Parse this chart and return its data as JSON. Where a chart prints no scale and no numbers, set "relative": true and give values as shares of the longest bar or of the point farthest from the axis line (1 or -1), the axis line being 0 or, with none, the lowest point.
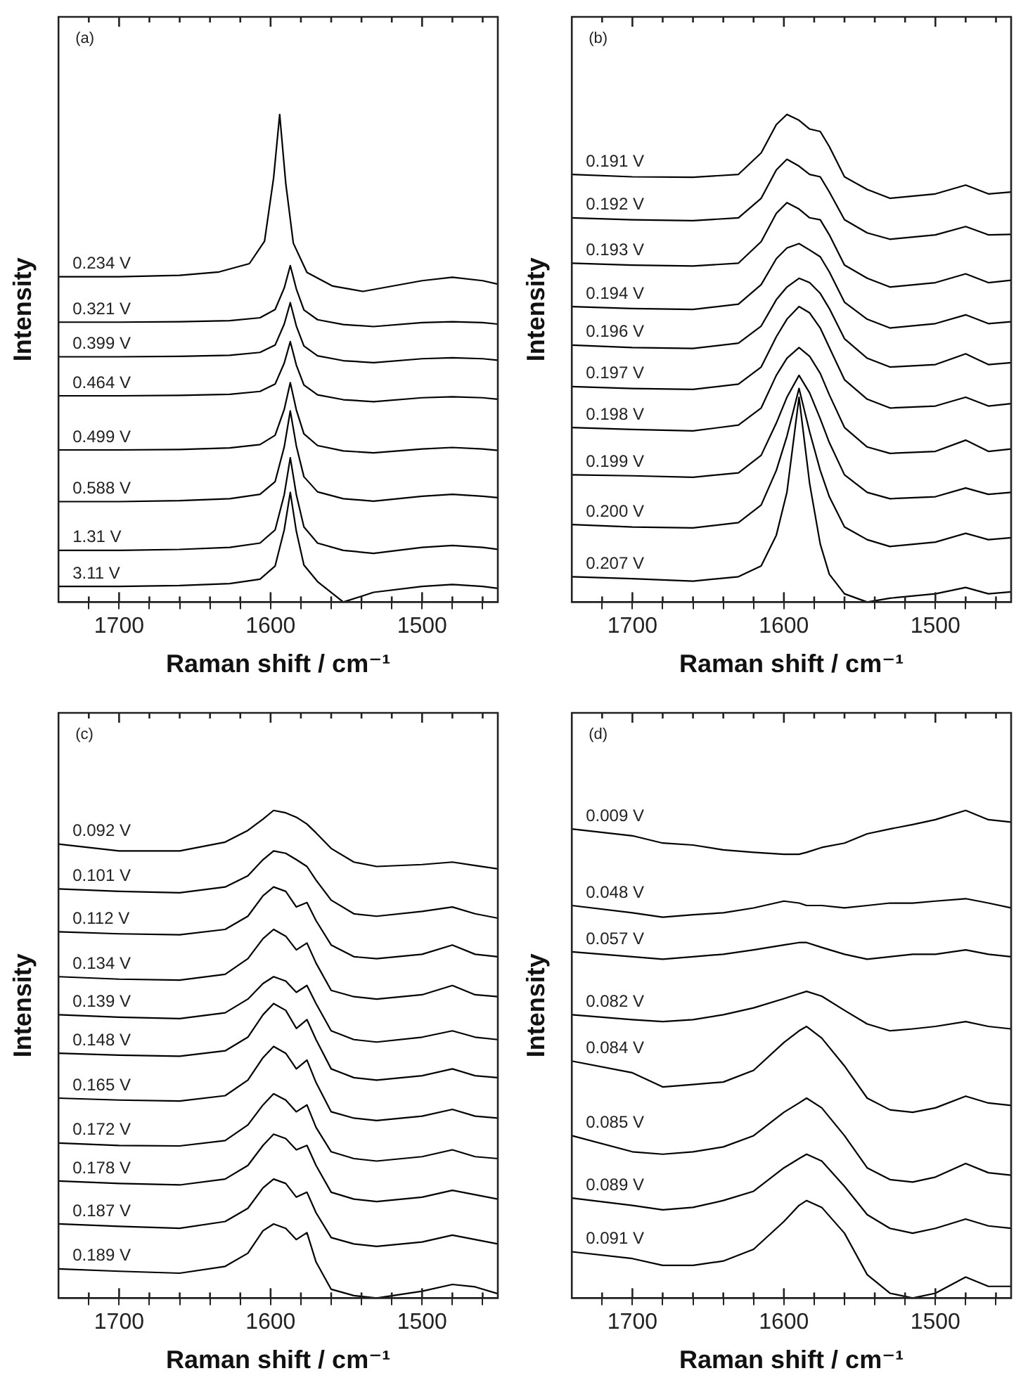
{
  "chart_data": [
    {
      "type": "line",
      "annotations": [
        "(a)"
      ],
      "xlabel": "Raman shift / cm⁻¹",
      "ylabel": "Intensity",
      "relative": true,
      "grid": false,
      "legend": false,
      "marker": "none",
      "line_style": "solid",
      "xlim": [
        1740,
        1450
      ],
      "xticks": [
        {
          "value": 1720,
          "label": null
        },
        1700,
        {
          "value": 1680,
          "label": null
        },
        {
          "value": 1660,
          "label": null
        },
        {
          "value": 1640,
          "label": null
        },
        {
          "value": 1620,
          "label": null
        },
        1600,
        {
          "value": 1580,
          "label": null
        },
        {
          "value": 1560,
          "label": null
        },
        {
          "value": 1540,
          "label": null
        },
        {
          "value": 1520,
          "label": null
        },
        1500,
        {
          "value": 1480,
          "label": null
        },
        {
          "value": 1460,
          "label": null
        }
      ],
      "series": [
        {
          "name": "0.234 V",
          "color": "#000000",
          "x": [
            1740,
            1700,
            1660,
            1634,
            1614,
            1604,
            1598,
            1594,
            1590,
            1585,
            1576,
            1559,
            1539,
            1500,
            1480,
            1460,
            1450
          ],
          "values": [
            0.667,
            0.667,
            0.67,
            0.677,
            0.694,
            0.74,
            0.87,
            1.0,
            0.859,
            0.736,
            0.676,
            0.648,
            0.637,
            0.659,
            0.666,
            0.659,
            0.652
          ]
        },
        {
          "name": "0.321 V",
          "color": "#000000",
          "x": [
            1740,
            1700,
            1660,
            1627,
            1607,
            1597,
            1591,
            1587,
            1583,
            1578,
            1569,
            1552,
            1532,
            1500,
            1480,
            1460,
            1450
          ],
          "values": [
            0.574,
            0.574,
            0.575,
            0.577,
            0.583,
            0.6,
            0.644,
            0.69,
            0.642,
            0.599,
            0.579,
            0.569,
            0.565,
            0.573,
            0.575,
            0.573,
            0.57
          ]
        },
        {
          "name": "0.399 V",
          "color": "#000000",
          "x": [
            1740,
            1700,
            1660,
            1627,
            1607,
            1597,
            1591,
            1587,
            1583,
            1578,
            1569,
            1552,
            1532,
            1500,
            1480,
            1460,
            1450
          ],
          "values": [
            0.503,
            0.503,
            0.504,
            0.506,
            0.512,
            0.527,
            0.57,
            0.614,
            0.566,
            0.525,
            0.505,
            0.495,
            0.491,
            0.499,
            0.501,
            0.499,
            0.496
          ]
        },
        {
          "name": "0.464 V",
          "color": "#000000",
          "x": [
            1740,
            1700,
            1660,
            1627,
            1607,
            1597,
            1591,
            1587,
            1583,
            1578,
            1569,
            1552,
            1532,
            1500,
            1480,
            1460,
            1450
          ],
          "values": [
            0.423,
            0.423,
            0.424,
            0.426,
            0.432,
            0.447,
            0.49,
            0.534,
            0.486,
            0.445,
            0.425,
            0.415,
            0.411,
            0.419,
            0.421,
            0.419,
            0.416
          ]
        },
        {
          "name": "0.499 V",
          "color": "#000000",
          "x": [
            1740,
            1700,
            1660,
            1627,
            1607,
            1597,
            1591,
            1587,
            1583,
            1578,
            1569,
            1552,
            1532,
            1500,
            1480,
            1460,
            1450
          ],
          "values": [
            0.312,
            0.312,
            0.313,
            0.316,
            0.323,
            0.342,
            0.395,
            0.45,
            0.394,
            0.345,
            0.321,
            0.31,
            0.306,
            0.314,
            0.317,
            0.314,
            0.311
          ]
        },
        {
          "name": "0.588 V",
          "color": "#000000",
          "x": [
            1740,
            1700,
            1660,
            1627,
            1607,
            1597,
            1591,
            1587,
            1583,
            1578,
            1569,
            1552,
            1532,
            1500,
            1480,
            1460,
            1450
          ],
          "values": [
            0.206,
            0.206,
            0.208,
            0.212,
            0.221,
            0.247,
            0.318,
            0.392,
            0.32,
            0.257,
            0.226,
            0.212,
            0.207,
            0.217,
            0.221,
            0.217,
            0.214
          ]
        },
        {
          "name": "1.31 V",
          "color": "#000000",
          "x": [
            1740,
            1700,
            1660,
            1627,
            1607,
            1597,
            1591,
            1587,
            1583,
            1578,
            1569,
            1552,
            1532,
            1500,
            1480,
            1460,
            1450
          ],
          "values": [
            0.106,
            0.106,
            0.108,
            0.112,
            0.121,
            0.148,
            0.22,
            0.296,
            0.22,
            0.154,
            0.121,
            0.106,
            0.1,
            0.112,
            0.116,
            0.112,
            0.108
          ]
        },
        {
          "name": "3.11 V",
          "color": "#000000",
          "x": [
            1740,
            1700,
            1660,
            1627,
            1607,
            1597,
            1591,
            1587,
            1583,
            1578,
            1569,
            1552,
            1532,
            1500,
            1480,
            1460,
            1450
          ],
          "values": [
            0.032,
            0.032,
            0.034,
            0.038,
            0.047,
            0.074,
            0.148,
            0.225,
            0.145,
            0.076,
            0.042,
            0.0,
            0.02,
            0.032,
            0.036,
            0.032,
            0.028
          ]
        }
      ]
    },
    {
      "type": "line",
      "annotations": [
        "(b)"
      ],
      "xlabel": "Raman shift / cm⁻¹",
      "ylabel": "Intensity",
      "relative": true,
      "grid": false,
      "legend": false,
      "marker": "none",
      "line_style": "solid",
      "xlim": [
        1740,
        1450
      ],
      "xticks": [
        {
          "value": 1720,
          "label": null
        },
        1700,
        {
          "value": 1680,
          "label": null
        },
        {
          "value": 1660,
          "label": null
        },
        {
          "value": 1640,
          "label": null
        },
        {
          "value": 1620,
          "label": null
        },
        1600,
        {
          "value": 1580,
          "label": null
        },
        {
          "value": 1560,
          "label": null
        },
        {
          "value": 1540,
          "label": null
        },
        {
          "value": 1520,
          "label": null
        },
        1500,
        {
          "value": 1480,
          "label": null
        },
        {
          "value": 1460,
          "label": null
        }
      ],
      "series": [
        {
          "name": "0.191 V",
          "color": "#000000",
          "x": [
            1740,
            1700,
            1660,
            1630,
            1615,
            1605,
            1598,
            1590,
            1583,
            1576,
            1570,
            1560,
            1545,
            1530,
            1500,
            1480,
            1465,
            1450
          ],
          "values": [
            0.877,
            0.872,
            0.871,
            0.877,
            0.921,
            0.979,
            1.0,
            0.988,
            0.97,
            0.965,
            0.934,
            0.872,
            0.846,
            0.828,
            0.837,
            0.855,
            0.837,
            0.841
          ]
        },
        {
          "name": "0.192 V",
          "color": "#000000",
          "x": [
            1740,
            1700,
            1660,
            1630,
            1615,
            1605,
            1598,
            1590,
            1583,
            1576,
            1570,
            1560,
            1545,
            1530,
            1500,
            1480,
            1465,
            1450
          ],
          "values": [
            0.788,
            0.784,
            0.782,
            0.788,
            0.828,
            0.886,
            0.908,
            0.894,
            0.877,
            0.872,
            0.841,
            0.784,
            0.757,
            0.744,
            0.753,
            0.77,
            0.753,
            0.754
          ]
        },
        {
          "name": "0.193 V",
          "color": "#000000",
          "x": [
            1740,
            1700,
            1660,
            1630,
            1615,
            1605,
            1598,
            1590,
            1583,
            1576,
            1570,
            1560,
            1545,
            1530,
            1500,
            1480,
            1465,
            1450
          ],
          "values": [
            0.695,
            0.691,
            0.689,
            0.695,
            0.739,
            0.797,
            0.819,
            0.806,
            0.788,
            0.784,
            0.753,
            0.691,
            0.664,
            0.646,
            0.655,
            0.673,
            0.655,
            0.66
          ]
        },
        {
          "name": "0.194 V",
          "color": "#000000",
          "x": [
            1740,
            1700,
            1660,
            1630,
            1615,
            1605,
            1598,
            1590,
            1583,
            1576,
            1570,
            1560,
            1545,
            1530,
            1500,
            1480,
            1465,
            1450
          ],
          "values": [
            0.606,
            0.602,
            0.6,
            0.611,
            0.651,
            0.704,
            0.726,
            0.735,
            0.722,
            0.708,
            0.677,
            0.615,
            0.58,
            0.562,
            0.571,
            0.589,
            0.571,
            0.575
          ]
        },
        {
          "name": "0.196 V",
          "color": "#000000",
          "x": [
            1740,
            1700,
            1660,
            1630,
            1615,
            1605,
            1598,
            1590,
            1583,
            1576,
            1570,
            1560,
            1545,
            1530,
            1500,
            1480,
            1465,
            1450
          ],
          "values": [
            0.527,
            0.522,
            0.52,
            0.531,
            0.566,
            0.62,
            0.646,
            0.664,
            0.655,
            0.633,
            0.602,
            0.54,
            0.5,
            0.482,
            0.487,
            0.509,
            0.487,
            0.491
          ]
        },
        {
          "name": "0.197 V",
          "color": "#000000",
          "x": [
            1740,
            1700,
            1660,
            1630,
            1615,
            1605,
            1598,
            1590,
            1583,
            1576,
            1570,
            1560,
            1545,
            1530,
            1500,
            1480,
            1465,
            1450
          ],
          "values": [
            0.442,
            0.438,
            0.436,
            0.447,
            0.482,
            0.544,
            0.58,
            0.606,
            0.593,
            0.562,
            0.522,
            0.456,
            0.416,
            0.398,
            0.402,
            0.42,
            0.402,
            0.407
          ]
        },
        {
          "name": "0.198 V",
          "color": "#000000",
          "x": [
            1740,
            1700,
            1660,
            1630,
            1615,
            1605,
            1598,
            1590,
            1583,
            1576,
            1570,
            1560,
            1545,
            1530,
            1500,
            1480,
            1465,
            1450
          ],
          "values": [
            0.358,
            0.354,
            0.351,
            0.363,
            0.398,
            0.465,
            0.5,
            0.522,
            0.504,
            0.469,
            0.425,
            0.358,
            0.318,
            0.305,
            0.309,
            0.332,
            0.309,
            0.314
          ]
        },
        {
          "name": "0.199 V",
          "color": "#000000",
          "x": [
            1740,
            1700,
            1660,
            1630,
            1615,
            1605,
            1598,
            1590,
            1583,
            1576,
            1570,
            1560,
            1545,
            1530,
            1500,
            1480,
            1465,
            1450
          ],
          "values": [
            0.261,
            0.259,
            0.256,
            0.265,
            0.301,
            0.367,
            0.42,
            0.465,
            0.429,
            0.376,
            0.327,
            0.261,
            0.225,
            0.212,
            0.216,
            0.234,
            0.221,
            0.225
          ]
        },
        {
          "name": "0.200 V",
          "color": "#000000",
          "x": [
            1740,
            1700,
            1660,
            1630,
            1615,
            1605,
            1598,
            1590,
            1583,
            1576,
            1570,
            1560,
            1545,
            1530,
            1500,
            1480,
            1465,
            1450
          ],
          "values": [
            0.159,
            0.154,
            0.152,
            0.163,
            0.199,
            0.27,
            0.34,
            0.438,
            0.349,
            0.27,
            0.216,
            0.154,
            0.128,
            0.114,
            0.123,
            0.141,
            0.128,
            0.132
          ]
        },
        {
          "name": "0.207 V",
          "color": "#000000",
          "x": [
            1740,
            1700,
            1660,
            1630,
            1615,
            1605,
            1598,
            1590,
            1583,
            1576,
            1570,
            1560,
            1545,
            1530,
            1500,
            1480,
            1465,
            1450
          ],
          "values": [
            0.052,
            0.048,
            0.043,
            0.052,
            0.074,
            0.137,
            0.225,
            0.42,
            0.243,
            0.119,
            0.057,
            0.017,
            0.0,
            0.008,
            0.017,
            0.03,
            0.017,
            0.021
          ]
        }
      ]
    },
    {
      "type": "line",
      "annotations": [
        "(c)"
      ],
      "xlabel": "Raman shift / cm⁻¹",
      "ylabel": "Intensity",
      "relative": true,
      "grid": false,
      "legend": false,
      "marker": "none",
      "line_style": "solid",
      "xlim": [
        1740,
        1450
      ],
      "xticks": [
        {
          "value": 1720,
          "label": null
        },
        1700,
        {
          "value": 1680,
          "label": null
        },
        {
          "value": 1660,
          "label": null
        },
        {
          "value": 1640,
          "label": null
        },
        {
          "value": 1620,
          "label": null
        },
        1600,
        {
          "value": 1580,
          "label": null
        },
        {
          "value": 1560,
          "label": null
        },
        {
          "value": 1540,
          "label": null
        },
        {
          "value": 1520,
          "label": null
        },
        1500,
        {
          "value": 1480,
          "label": null
        },
        {
          "value": 1460,
          "label": null
        }
      ],
      "series": [
        {
          "name": "0.092 V",
          "color": "#000000",
          "x": [
            1740,
            1700,
            1660,
            1630,
            1615,
            1605,
            1598,
            1590,
            1583,
            1576,
            1570,
            1560,
            1545,
            1530,
            1500,
            1480,
            1465,
            1450
          ],
          "values": [
            0.931,
            0.917,
            0.917,
            0.935,
            0.959,
            0.982,
            1.0,
            0.995,
            0.986,
            0.972,
            0.954,
            0.922,
            0.894,
            0.885,
            0.889,
            0.894,
            0.887,
            0.88
          ]
        },
        {
          "name": "0.101 V",
          "color": "#000000",
          "x": [
            1740,
            1700,
            1660,
            1630,
            1615,
            1605,
            1598,
            1590,
            1583,
            1576,
            1570,
            1560,
            1545,
            1530,
            1500,
            1480,
            1465,
            1450
          ],
          "values": [
            0.839,
            0.834,
            0.831,
            0.843,
            0.866,
            0.899,
            0.917,
            0.912,
            0.899,
            0.885,
            0.857,
            0.816,
            0.788,
            0.783,
            0.793,
            0.802,
            0.788,
            0.779
          ]
        },
        {
          "name": "0.112 V",
          "color": "#000000",
          "x": [
            1740,
            1700,
            1660,
            1630,
            1615,
            1605,
            1598,
            1590,
            1583,
            1576,
            1570,
            1560,
            1545,
            1530,
            1500,
            1480,
            1465,
            1450
          ],
          "values": [
            0.751,
            0.747,
            0.745,
            0.756,
            0.783,
            0.825,
            0.843,
            0.834,
            0.802,
            0.811,
            0.774,
            0.724,
            0.7,
            0.696,
            0.705,
            0.724,
            0.705,
            0.7
          ]
        },
        {
          "name": "0.134 V",
          "color": "#000000",
          "x": [
            1740,
            1700,
            1660,
            1630,
            1615,
            1605,
            1598,
            1590,
            1583,
            1576,
            1570,
            1560,
            1545,
            1530,
            1500,
            1480,
            1465,
            1450
          ],
          "values": [
            0.659,
            0.654,
            0.652,
            0.664,
            0.696,
            0.737,
            0.756,
            0.742,
            0.714,
            0.728,
            0.687,
            0.631,
            0.618,
            0.613,
            0.622,
            0.641,
            0.622,
            0.618
          ]
        },
        {
          "name": "0.139 V",
          "color": "#000000",
          "x": [
            1740,
            1700,
            1660,
            1630,
            1615,
            1605,
            1598,
            1590,
            1583,
            1576,
            1570,
            1560,
            1545,
            1530,
            1500,
            1480,
            1465,
            1450
          ],
          "values": [
            0.581,
            0.576,
            0.573,
            0.585,
            0.613,
            0.645,
            0.659,
            0.65,
            0.627,
            0.641,
            0.604,
            0.548,
            0.53,
            0.525,
            0.535,
            0.548,
            0.535,
            0.53
          ]
        },
        {
          "name": "0.148 V",
          "color": "#000000",
          "x": [
            1740,
            1700,
            1660,
            1630,
            1615,
            1605,
            1598,
            1590,
            1583,
            1576,
            1570,
            1560,
            1545,
            1530,
            1500,
            1480,
            1465,
            1450
          ],
          "values": [
            0.502,
            0.498,
            0.496,
            0.507,
            0.535,
            0.581,
            0.604,
            0.59,
            0.553,
            0.571,
            0.53,
            0.47,
            0.452,
            0.447,
            0.456,
            0.47,
            0.456,
            0.452
          ]
        },
        {
          "name": "0.165 V",
          "color": "#000000",
          "x": [
            1740,
            1700,
            1660,
            1630,
            1615,
            1605,
            1598,
            1590,
            1583,
            1576,
            1570,
            1560,
            1545,
            1530,
            1500,
            1480,
            1465,
            1450
          ],
          "values": [
            0.41,
            0.406,
            0.404,
            0.415,
            0.447,
            0.493,
            0.516,
            0.502,
            0.47,
            0.488,
            0.442,
            0.382,
            0.369,
            0.364,
            0.373,
            0.387,
            0.373,
            0.369
          ]
        },
        {
          "name": "0.172 V",
          "color": "#000000",
          "x": [
            1740,
            1700,
            1660,
            1630,
            1615,
            1605,
            1598,
            1590,
            1583,
            1576,
            1570,
            1560,
            1545,
            1530,
            1500,
            1480,
            1465,
            1450
          ],
          "values": [
            0.318,
            0.313,
            0.312,
            0.323,
            0.355,
            0.396,
            0.419,
            0.406,
            0.382,
            0.396,
            0.35,
            0.3,
            0.286,
            0.281,
            0.29,
            0.304,
            0.29,
            0.286
          ]
        },
        {
          "name": "0.178 V",
          "color": "#000000",
          "x": [
            1740,
            1700,
            1660,
            1630,
            1615,
            1605,
            1598,
            1590,
            1583,
            1576,
            1570,
            1560,
            1545,
            1530,
            1500,
            1480,
            1465,
            1450
          ],
          "values": [
            0.24,
            0.235,
            0.232,
            0.244,
            0.272,
            0.313,
            0.336,
            0.327,
            0.304,
            0.313,
            0.272,
            0.217,
            0.203,
            0.198,
            0.207,
            0.221,
            0.212,
            0.203
          ]
        },
        {
          "name": "0.187 V",
          "color": "#000000",
          "x": [
            1740,
            1700,
            1660,
            1630,
            1615,
            1605,
            1598,
            1590,
            1583,
            1576,
            1570,
            1560,
            1545,
            1530,
            1500,
            1480,
            1465,
            1450
          ],
          "values": [
            0.152,
            0.147,
            0.143,
            0.157,
            0.184,
            0.226,
            0.244,
            0.235,
            0.207,
            0.217,
            0.175,
            0.124,
            0.111,
            0.106,
            0.115,
            0.129,
            0.12,
            0.111
          ]
        },
        {
          "name": "0.189 V",
          "color": "#000000",
          "x": [
            1740,
            1700,
            1660,
            1630,
            1615,
            1605,
            1598,
            1590,
            1583,
            1576,
            1570,
            1560,
            1545,
            1530,
            1500,
            1480,
            1465,
            1450
          ],
          "values": [
            0.06,
            0.055,
            0.051,
            0.065,
            0.092,
            0.138,
            0.152,
            0.143,
            0.12,
            0.134,
            0.074,
            0.018,
            0.005,
            0.0,
            0.014,
            0.028,
            0.023,
            0.009
          ]
        }
      ]
    },
    {
      "type": "line",
      "annotations": [
        "(d)"
      ],
      "xlabel": "Raman shift / cm⁻¹",
      "ylabel": "Intensity",
      "relative": true,
      "grid": false,
      "legend": false,
      "marker": "none",
      "line_style": "solid",
      "xlim": [
        1740,
        1450
      ],
      "xticks": [
        {
          "value": 1720,
          "label": null
        },
        1700,
        {
          "value": 1680,
          "label": null
        },
        {
          "value": 1660,
          "label": null
        },
        {
          "value": 1640,
          "label": null
        },
        {
          "value": 1620,
          "label": null
        },
        1600,
        {
          "value": 1580,
          "label": null
        },
        {
          "value": 1560,
          "label": null
        },
        {
          "value": 1540,
          "label": null
        },
        {
          "value": 1520,
          "label": null
        },
        1500,
        {
          "value": 1480,
          "label": null
        },
        {
          "value": 1460,
          "label": null
        }
      ],
      "series": [
        {
          "name": "0.009 V",
          "color": "#000000",
          "x": [
            1740,
            1700,
            1680,
            1660,
            1640,
            1620,
            1600,
            1590,
            1585,
            1575,
            1560,
            1545,
            1530,
            1515,
            1500,
            1480,
            1465,
            1450
          ],
          "values": [
            0.962,
            0.948,
            0.933,
            0.929,
            0.919,
            0.914,
            0.91,
            0.91,
            0.914,
            0.924,
            0.933,
            0.952,
            0.962,
            0.971,
            0.981,
            1.0,
            0.981,
            0.976
          ]
        },
        {
          "name": "0.048 V",
          "color": "#000000",
          "x": [
            1740,
            1700,
            1680,
            1660,
            1640,
            1620,
            1600,
            1590,
            1585,
            1575,
            1560,
            1545,
            1530,
            1515,
            1500,
            1480,
            1465,
            1450
          ],
          "values": [
            0.805,
            0.79,
            0.781,
            0.786,
            0.79,
            0.8,
            0.814,
            0.81,
            0.805,
            0.805,
            0.8,
            0.805,
            0.81,
            0.81,
            0.814,
            0.819,
            0.81,
            0.8
          ]
        },
        {
          "name": "0.057 V",
          "color": "#000000",
          "x": [
            1740,
            1700,
            1680,
            1660,
            1640,
            1620,
            1600,
            1590,
            1585,
            1575,
            1560,
            1545,
            1530,
            1515,
            1500,
            1480,
            1465,
            1450
          ],
          "values": [
            0.71,
            0.7,
            0.695,
            0.7,
            0.705,
            0.714,
            0.724,
            0.729,
            0.729,
            0.719,
            0.705,
            0.695,
            0.7,
            0.705,
            0.705,
            0.714,
            0.705,
            0.7
          ]
        },
        {
          "name": "0.082 V",
          "color": "#000000",
          "x": [
            1740,
            1700,
            1680,
            1660,
            1640,
            1620,
            1600,
            1590,
            1585,
            1575,
            1560,
            1545,
            1530,
            1515,
            1500,
            1480,
            1465,
            1450
          ],
          "values": [
            0.581,
            0.571,
            0.567,
            0.571,
            0.581,
            0.595,
            0.614,
            0.624,
            0.629,
            0.619,
            0.59,
            0.562,
            0.548,
            0.552,
            0.557,
            0.567,
            0.557,
            0.552
          ]
        },
        {
          "name": "0.084 V",
          "color": "#000000",
          "x": [
            1740,
            1700,
            1680,
            1660,
            1640,
            1620,
            1600,
            1590,
            1585,
            1575,
            1560,
            1545,
            1530,
            1515,
            1500,
            1480,
            1465,
            1450
          ],
          "values": [
            0.486,
            0.462,
            0.433,
            0.438,
            0.443,
            0.467,
            0.524,
            0.548,
            0.557,
            0.533,
            0.476,
            0.41,
            0.386,
            0.381,
            0.39,
            0.414,
            0.4,
            0.395
          ]
        },
        {
          "name": "0.085 V",
          "color": "#000000",
          "x": [
            1740,
            1700,
            1680,
            1660,
            1640,
            1620,
            1600,
            1590,
            1585,
            1575,
            1560,
            1545,
            1530,
            1515,
            1500,
            1480,
            1465,
            1450
          ],
          "values": [
            0.333,
            0.3,
            0.295,
            0.3,
            0.31,
            0.333,
            0.381,
            0.4,
            0.41,
            0.39,
            0.333,
            0.267,
            0.243,
            0.238,
            0.248,
            0.276,
            0.257,
            0.252
          ]
        },
        {
          "name": "0.089 V",
          "color": "#000000",
          "x": [
            1740,
            1700,
            1680,
            1660,
            1640,
            1620,
            1600,
            1590,
            1585,
            1575,
            1560,
            1545,
            1530,
            1515,
            1500,
            1480,
            1465,
            1450
          ],
          "values": [
            0.205,
            0.19,
            0.181,
            0.186,
            0.2,
            0.219,
            0.267,
            0.286,
            0.295,
            0.281,
            0.229,
            0.171,
            0.143,
            0.133,
            0.143,
            0.162,
            0.148,
            0.143
          ]
        },
        {
          "name": "0.091 V",
          "color": "#000000",
          "x": [
            1740,
            1700,
            1680,
            1660,
            1640,
            1620,
            1600,
            1590,
            1585,
            1575,
            1560,
            1545,
            1530,
            1515,
            1500,
            1480,
            1465,
            1450
          ],
          "values": [
            0.095,
            0.081,
            0.067,
            0.067,
            0.076,
            0.1,
            0.157,
            0.19,
            0.2,
            0.186,
            0.133,
            0.048,
            0.01,
            0.0,
            0.01,
            0.043,
            0.024,
            0.024
          ]
        }
      ]
    }
  ]
}
